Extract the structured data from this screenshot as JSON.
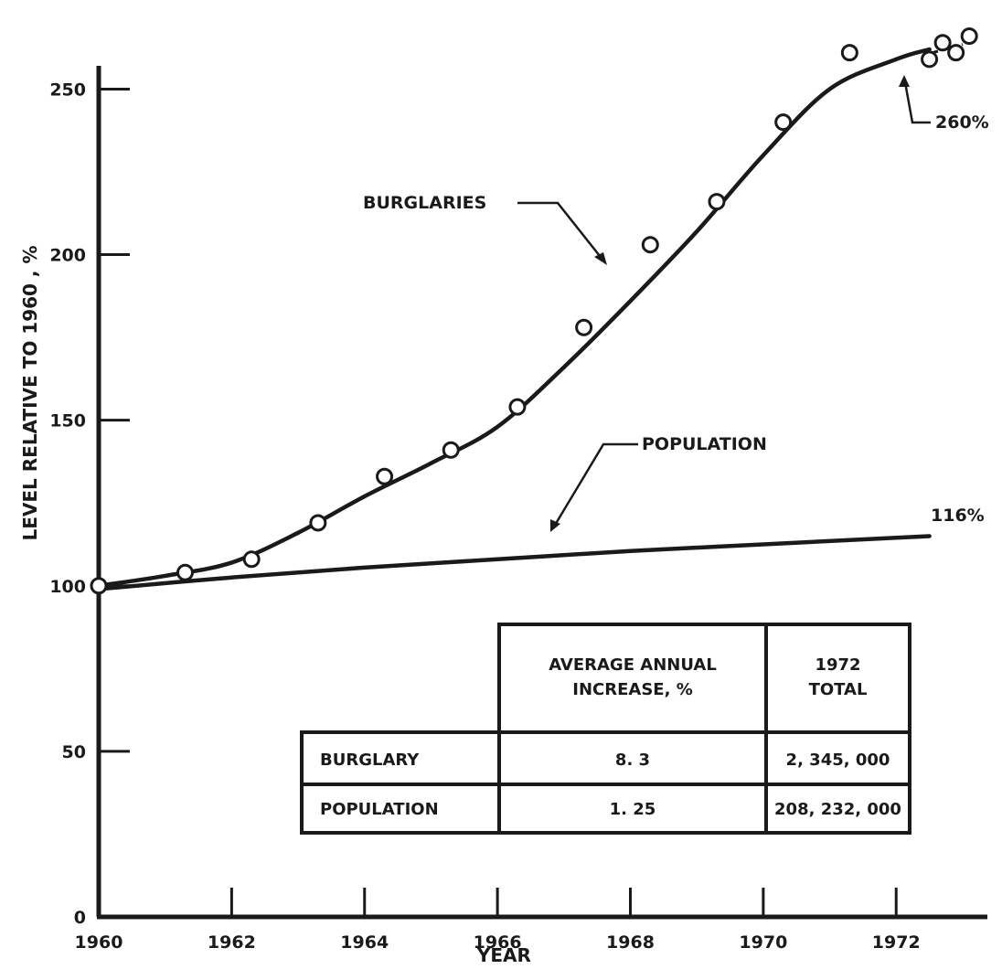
{
  "chart_data": {
    "type": "line",
    "title": "",
    "xlabel": "YEAR",
    "ylabel": "LEVEL RELATIVE TO 1960 , %",
    "xlim": [
      1960,
      1973.4
    ],
    "ylim": [
      0,
      270
    ],
    "x_ticks": [
      1960,
      1962,
      1964,
      1966,
      1968,
      1970,
      1972
    ],
    "y_ticks": [
      0,
      50,
      100,
      150,
      200,
      250
    ],
    "grid": false,
    "series": [
      {
        "name": "BURGLARIES",
        "kind": "curve-with-points",
        "curve": [
          [
            1960,
            100
          ],
          [
            1961,
            103
          ],
          [
            1962,
            107
          ],
          [
            1963,
            116
          ],
          [
            1964,
            127
          ],
          [
            1965,
            137
          ],
          [
            1966,
            148
          ],
          [
            1967,
            166
          ],
          [
            1968,
            186
          ],
          [
            1969,
            207
          ],
          [
            1970,
            230
          ],
          [
            1971,
            250
          ],
          [
            1972,
            259
          ],
          [
            1972.5,
            262
          ]
        ],
        "points": [
          [
            1960,
            100
          ],
          [
            1961.3,
            104
          ],
          [
            1962.3,
            108
          ],
          [
            1963.3,
            119
          ],
          [
            1964.3,
            133
          ],
          [
            1965.3,
            141
          ],
          [
            1966.3,
            154
          ],
          [
            1967.3,
            178
          ],
          [
            1968.3,
            203
          ],
          [
            1969.3,
            216
          ],
          [
            1970.3,
            240
          ],
          [
            1971.3,
            261
          ],
          [
            1972.5,
            259
          ],
          [
            1972.7,
            264
          ],
          [
            1972.9,
            261
          ],
          [
            1973.1,
            266
          ]
        ]
      },
      {
        "name": "POPULATION",
        "kind": "line",
        "curve": [
          [
            1960,
            99
          ],
          [
            1962,
            102.5
          ],
          [
            1964,
            105.5
          ],
          [
            1966,
            108
          ],
          [
            1968,
            110.5
          ],
          [
            1970,
            112.5
          ],
          [
            1972,
            114.5
          ],
          [
            1972.5,
            115
          ]
        ]
      }
    ],
    "annotations": {
      "burglaries_label": "BURGLARIES",
      "population_label": "POPULATION",
      "burglary_end": "260%",
      "population_end": "116%"
    },
    "table": {
      "headers": [
        "",
        "AVERAGE ANNUAL INCREASE, %",
        "1972 TOTAL"
      ],
      "header_lines": [
        [
          "AVERAGE ANNUAL",
          "INCREASE, %"
        ],
        [
          "1972",
          "TOTAL"
        ]
      ],
      "rows": [
        [
          "BURGLARY",
          "8. 3",
          "2, 345, 000"
        ],
        [
          "POPULATION",
          "1. 25",
          "208, 232, 000"
        ]
      ]
    }
  }
}
